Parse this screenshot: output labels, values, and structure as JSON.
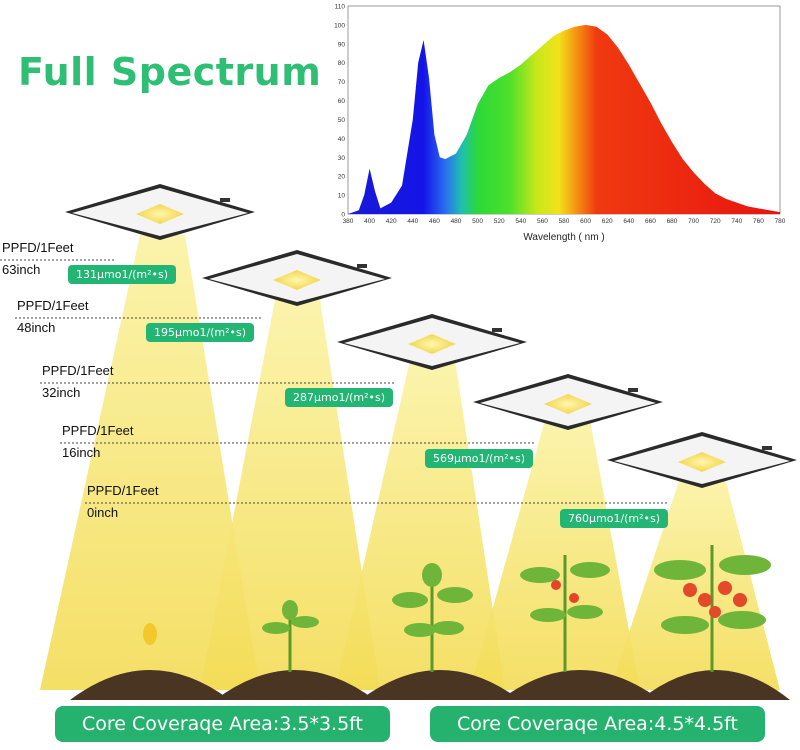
{
  "title": "Full Spectrum",
  "chart_data": {
    "type": "area",
    "xlabel": "Wavelength ( nm )",
    "ylabel": "",
    "xlim": [
      380,
      780
    ],
    "ylim": [
      0,
      110
    ],
    "xticks": [
      380,
      400,
      420,
      440,
      460,
      480,
      500,
      520,
      540,
      560,
      580,
      600,
      620,
      640,
      660,
      680,
      700,
      720,
      740,
      760,
      780
    ],
    "yticks": [
      0,
      10,
      20,
      30,
      40,
      50,
      60,
      70,
      80,
      90,
      100,
      110
    ],
    "grid": false,
    "x": [
      380,
      390,
      395,
      400,
      405,
      410,
      420,
      430,
      440,
      445,
      450,
      455,
      460,
      465,
      470,
      480,
      490,
      500,
      510,
      520,
      530,
      540,
      550,
      560,
      570,
      580,
      590,
      600,
      610,
      620,
      630,
      640,
      650,
      660,
      670,
      680,
      690,
      700,
      710,
      720,
      730,
      740,
      750,
      760,
      770,
      780
    ],
    "values": [
      0,
      2,
      10,
      24,
      12,
      3,
      6,
      15,
      50,
      80,
      92,
      72,
      42,
      30,
      29,
      32,
      42,
      58,
      68,
      72,
      75,
      79,
      84,
      89,
      94,
      97,
      99,
      100,
      99,
      95,
      88,
      79,
      69,
      59,
      48,
      38,
      29,
      22,
      16,
      11,
      8,
      6,
      4,
      3,
      2,
      1
    ]
  },
  "heights": [
    {
      "label": "PPFD/1Feet",
      "height": "63inch",
      "ppfd": "131μmo1/(m²•s)"
    },
    {
      "label": "PPFD/1Feet",
      "height": "48inch",
      "ppfd": "195μmo1/(m²•s)"
    },
    {
      "label": "PPFD/1Feet",
      "height": "32inch",
      "ppfd": "287μmo1/(m²•s)"
    },
    {
      "label": "PPFD/1Feet",
      "height": "16inch",
      "ppfd": "569μmo1/(m²•s)"
    },
    {
      "label": "PPFD/1Feet",
      "height": "0inch",
      "ppfd": "760μmo1/(m²•s)"
    }
  ],
  "coverage": [
    "Core Coveraqe Area:3.5*3.5ft",
    "Core Coveraqe Area:4.5*4.5ft"
  ],
  "colors": {
    "accent": "#22b573",
    "title": "#2fbf74",
    "beam": "#f6e77a",
    "soil": "#4a3522"
  }
}
